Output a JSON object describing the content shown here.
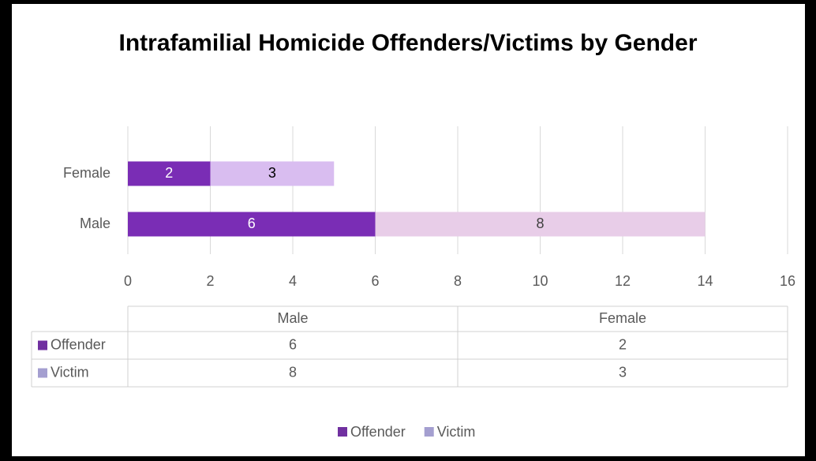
{
  "chart_data": {
    "type": "stacked_bar_horizontal",
    "title": "Intrafamilial Homicide Offenders/Victims by Gender",
    "categories": [
      "Male",
      "Female"
    ],
    "series": [
      {
        "name": "Offender",
        "color": "#7030a0",
        "point_colors": [
          "#7a2db5",
          "#7a2db5"
        ],
        "values": [
          6,
          2
        ]
      },
      {
        "name": "Victim",
        "color": "#a49fd0",
        "point_colors": [
          "#e8cde8",
          "#d9bdf0"
        ],
        "values": [
          8,
          3
        ]
      }
    ],
    "xlim": [
      0,
      16
    ],
    "xticks": [
      0,
      2,
      4,
      6,
      8,
      10,
      12,
      14,
      16
    ],
    "grid": true,
    "legend": "bottom",
    "data_table": true
  }
}
